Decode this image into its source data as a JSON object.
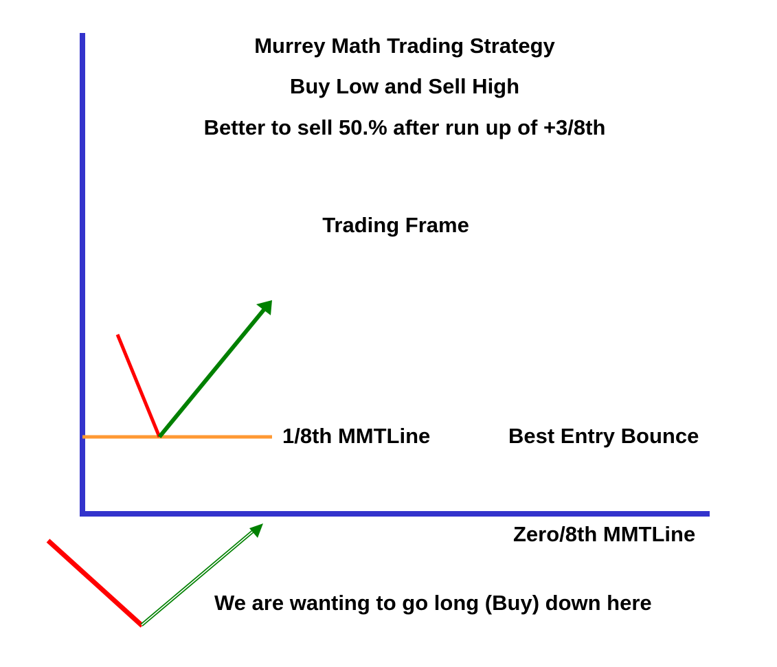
{
  "title": "Murrey Math Trading Strategy",
  "subtitle": "Buy Low and Sell High",
  "tip": "Better to sell 50.% after run up of +3/8th",
  "frame_label": "Trading Frame",
  "line_one_eighth_label": "1/8th MMTLine",
  "best_entry_label": "Best Entry Bounce",
  "zero_eighth_label": "Zero/8th MMTLine",
  "go_long_note": "We are wanting to go long (Buy) down here",
  "colors": {
    "axis": "#3333cc",
    "one_eighth_line": "#ff9933",
    "down_arrow": "#ff0000",
    "up_arrow": "#008000",
    "text": "#000000"
  },
  "icons": {
    "down_move": "red-decline-line",
    "up_move": "green-up-arrow-icon",
    "lower_up_move": "green-outline-up-arrow-icon"
  }
}
